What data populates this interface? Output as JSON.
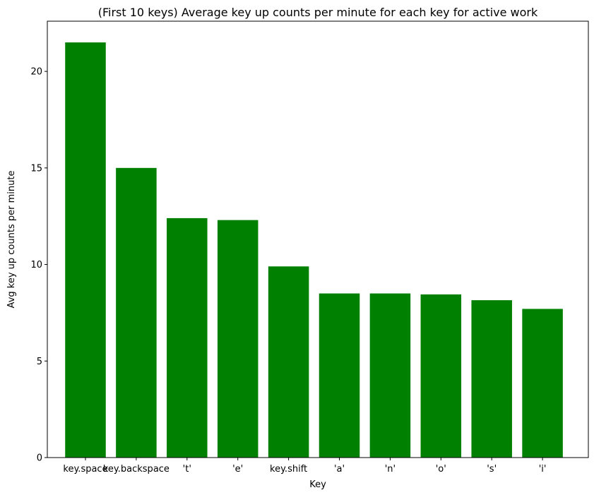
{
  "chart_data": {
    "type": "bar",
    "title": "(First 10 keys) Average key up counts per minute for each key for active work",
    "xlabel": "Key",
    "ylabel": "Avg key up counts per minute",
    "categories": [
      "key.space",
      "key.backspace",
      "'t'",
      "'e'",
      "key.shift",
      "'a'",
      "'n'",
      "'o'",
      "'s'",
      "'i'"
    ],
    "values": [
      21.5,
      15.0,
      12.4,
      12.3,
      9.9,
      8.5,
      8.5,
      8.45,
      8.15,
      7.7
    ],
    "ylim": [
      0,
      22.6
    ],
    "yticks": [
      0,
      5,
      10,
      15,
      20
    ],
    "bar_color": "#008000",
    "grid": false
  }
}
